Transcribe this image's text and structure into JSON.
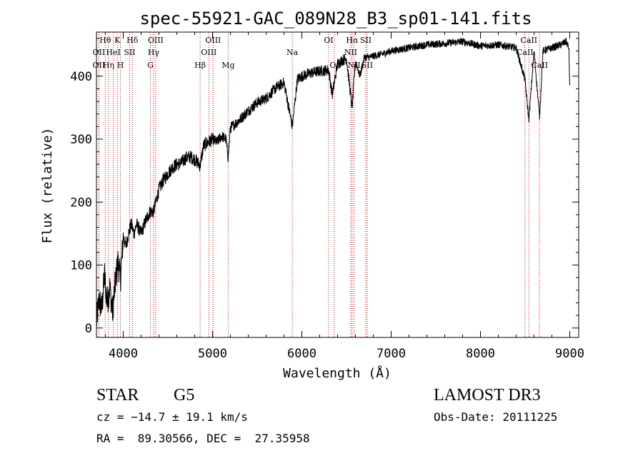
{
  "chart_data": {
    "type": "line",
    "title": "spec-55921-GAC_089N28_B3_sp01-141.fits",
    "xlabel": "Wavelength (Å)",
    "ylabel": "Flux (relative)",
    "xlim": [
      3700,
      9100
    ],
    "ylim": [
      -15,
      470
    ],
    "xticks": [
      4000,
      5000,
      6000,
      7000,
      8000,
      9000
    ],
    "yticks": [
      0,
      100,
      200,
      300,
      400
    ],
    "spectrum": {
      "name": "flux",
      "x": [
        3700,
        3730,
        3760,
        3790,
        3820,
        3850,
        3880,
        3910,
        3940,
        3970,
        4000,
        4030,
        4060,
        4090,
        4120,
        4150,
        4200,
        4250,
        4300,
        4340,
        4400,
        4450,
        4500,
        4550,
        4600,
        4650,
        4700,
        4750,
        4800,
        4861,
        4900,
        4950,
        5000,
        5050,
        5100,
        5150,
        5175,
        5200,
        5300,
        5400,
        5500,
        5600,
        5700,
        5800,
        5893,
        5950,
        6000,
        6100,
        6200,
        6300,
        6340,
        6400,
        6450,
        6500,
        6563,
        6600,
        6650,
        6700,
        6750,
        6800,
        6900,
        7000,
        7200,
        7400,
        7600,
        7800,
        8000,
        8200,
        8400,
        8498,
        8542,
        8600,
        8662,
        8700,
        8800,
        8900,
        8960,
        8990,
        9000
      ],
      "y": [
        10,
        45,
        30,
        85,
        40,
        65,
        25,
        70,
        105,
        80,
        145,
        130,
        150,
        165,
        150,
        165,
        150,
        170,
        185,
        185,
        220,
        235,
        245,
        255,
        260,
        262,
        270,
        272,
        268,
        258,
        290,
        295,
        300,
        295,
        305,
        300,
        270,
        318,
        330,
        345,
        358,
        365,
        380,
        390,
        320,
        395,
        400,
        405,
        408,
        410,
        370,
        420,
        425,
        428,
        350,
        425,
        400,
        430,
        430,
        432,
        435,
        440,
        445,
        450,
        452,
        455,
        448,
        450,
        445,
        395,
        330,
        440,
        335,
        440,
        445,
        450,
        455,
        445,
        380
      ]
    },
    "lines": [
      {
        "name": "Hθ",
        "wave": 3798,
        "row": 1
      },
      {
        "name": "OII",
        "wave": 3727,
        "row": 2
      },
      {
        "name": "OII",
        "wave": 3727,
        "row": 3
      },
      {
        "name": "K",
        "wave": 3934,
        "row": 1
      },
      {
        "name": "HeI",
        "wave": 3889,
        "row": 2
      },
      {
        "name": "Hη",
        "wave": 3835,
        "row": 3
      },
      {
        "name": "Hδ",
        "wave": 4102,
        "row": 1
      },
      {
        "name": "SII",
        "wave": 4072,
        "row": 2
      },
      {
        "name": "H",
        "wave": 3968,
        "row": 3
      },
      {
        "name": "OIII",
        "wave": 4363,
        "row": 1
      },
      {
        "name": "Hγ",
        "wave": 4340,
        "row": 2
      },
      {
        "name": "G",
        "wave": 4304,
        "row": 3
      },
      {
        "name": "OIII",
        "wave": 5007,
        "row": 1
      },
      {
        "name": "OIII",
        "wave": 4959,
        "row": 2
      },
      {
        "name": "Hβ",
        "wave": 4861,
        "row": 3
      },
      {
        "name": "Mg",
        "wave": 5175,
        "row": 3
      },
      {
        "name": "Na",
        "wave": 5893,
        "row": 2
      },
      {
        "name": "OI",
        "wave": 6300,
        "row": 1
      },
      {
        "name": "OI",
        "wave": 6364,
        "row": 3
      },
      {
        "name": "Hα",
        "wave": 6563,
        "row": 1
      },
      {
        "name": "SII",
        "wave": 6716,
        "row": 1
      },
      {
        "name": "NII",
        "wave": 6548,
        "row": 2
      },
      {
        "name": "NII",
        "wave": 6584,
        "row": 3
      },
      {
        "name": "SII",
        "wave": 6731,
        "row": 3
      },
      {
        "name": "CaII",
        "wave": 8542,
        "row": 1
      },
      {
        "name": "CaII",
        "wave": 8498,
        "row": 2
      },
      {
        "name": "CaII",
        "wave": 8662,
        "row": 3
      }
    ],
    "line_marker_color": "#cc0000"
  },
  "info": {
    "object_class": "STAR",
    "subclass": "G5",
    "survey": "LAMOST DR3",
    "redshift": "cz = −14.7 ± 19.1 km/s",
    "obs_date": "Obs-Date: 20111225",
    "coords": "RA =  89.30566, DEC =  27.35958"
  }
}
